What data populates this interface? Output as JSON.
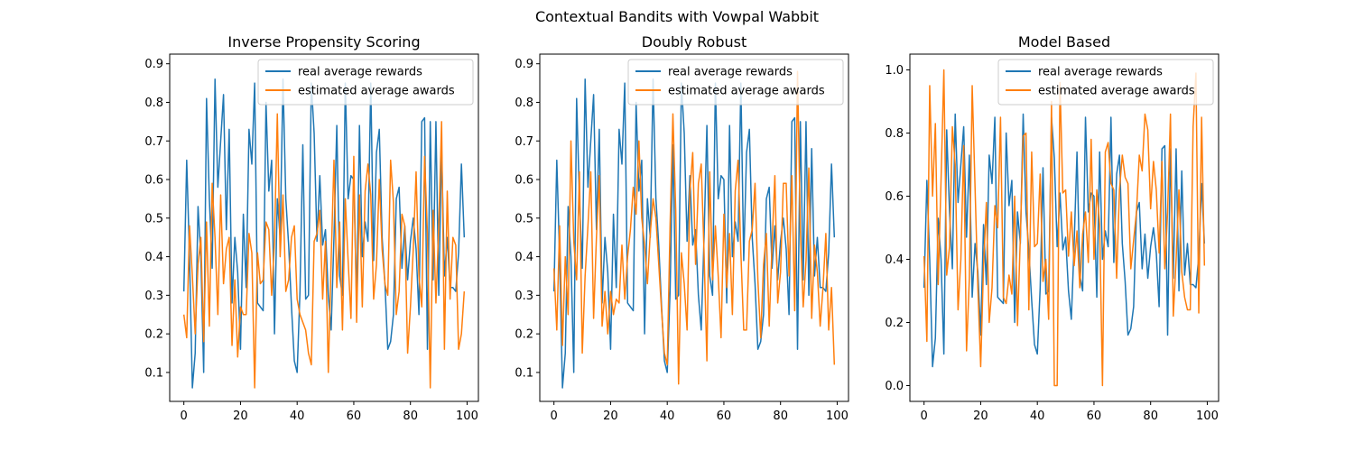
{
  "figure": {
    "suptitle": "Contextual Bandits with Vowpal Wabbit"
  },
  "colors": {
    "real": "#1f77b4",
    "estimated": "#ff7f0e",
    "axis": "#000000",
    "legend_border": "#cccccc",
    "background": "#ffffff"
  },
  "chart_data": [
    {
      "type": "line",
      "title": "Inverse Propensity Scoring",
      "xlabel": "",
      "ylabel": "",
      "xlim": [
        -5,
        104
      ],
      "ylim": [
        0.025,
        0.925
      ],
      "xticks": [
        0,
        20,
        40,
        60,
        80,
        100
      ],
      "yticks": [
        0.1,
        0.2,
        0.3,
        0.4,
        0.5,
        0.6,
        0.7,
        0.8,
        0.9
      ],
      "grid": false,
      "legend": "top-right",
      "series": [
        {
          "name": "real average rewards",
          "values": [
            0.31,
            0.65,
            0.4,
            0.06,
            0.15,
            0.53,
            0.4,
            0.1,
            0.81,
            0.55,
            0.37,
            0.86,
            0.58,
            0.7,
            0.82,
            0.47,
            0.73,
            0.28,
            0.45,
            0.36,
            0.16,
            0.51,
            0.32,
            0.73,
            0.64,
            0.85,
            0.28,
            0.27,
            0.26,
            0.8,
            0.57,
            0.65,
            0.2,
            0.55,
            0.45,
            0.86,
            0.55,
            0.43,
            0.27,
            0.13,
            0.1,
            0.31,
            0.69,
            0.29,
            0.3,
            0.85,
            0.72,
            0.44,
            0.61,
            0.43,
            0.47,
            0.3,
            0.21,
            0.45,
            0.74,
            0.35,
            0.3,
            0.85,
            0.55,
            0.61,
            0.6,
            0.28,
            0.74,
            0.4,
            0.49,
            0.44,
            0.85,
            0.39,
            0.67,
            0.73,
            0.45,
            0.33,
            0.16,
            0.18,
            0.25,
            0.55,
            0.58,
            0.37,
            0.48,
            0.34,
            0.44,
            0.5,
            0.42,
            0.25,
            0.75,
            0.76,
            0.16,
            0.75,
            0.34,
            0.75,
            0.3,
            0.68,
            0.35,
            0.45,
            0.32,
            0.32,
            0.31,
            0.41,
            0.64,
            0.45
          ]
        },
        {
          "name": "estimated average awards",
          "values": [
            0.25,
            0.19,
            0.48,
            0.35,
            0.2,
            0.38,
            0.45,
            0.18,
            0.49,
            0.22,
            0.59,
            0.45,
            0.25,
            0.56,
            0.33,
            0.42,
            0.45,
            0.17,
            0.34,
            0.14,
            0.27,
            0.25,
            0.25,
            0.46,
            0.41,
            0.06,
            0.41,
            0.33,
            0.34,
            0.49,
            0.47,
            0.3,
            0.44,
            0.77,
            0.4,
            0.56,
            0.31,
            0.34,
            0.45,
            0.48,
            0.29,
            0.25,
            0.23,
            0.21,
            0.15,
            0.12,
            0.44,
            0.46,
            0.52,
            0.29,
            0.44,
            0.1,
            0.39,
            0.65,
            0.32,
            0.49,
            0.21,
            0.55,
            0.39,
            0.24,
            0.66,
            0.23,
            0.56,
            0.27,
            0.57,
            0.64,
            0.56,
            0.29,
            0.38,
            0.6,
            0.42,
            0.33,
            0.3,
            0.65,
            0.54,
            0.25,
            0.31,
            0.51,
            0.48,
            0.15,
            0.27,
            0.42,
            0.62,
            0.35,
            0.27,
            0.66,
            0.46,
            0.06,
            0.52,
            0.28,
            0.48,
            0.75,
            0.16,
            0.57,
            0.29,
            0.45,
            0.43,
            0.16,
            0.2,
            0.31
          ]
        }
      ]
    },
    {
      "type": "line",
      "title": "Doubly Robust",
      "xlabel": "",
      "ylabel": "",
      "xlim": [
        -5,
        104
      ],
      "ylim": [
        0.025,
        0.925
      ],
      "xticks": [
        0,
        20,
        40,
        60,
        80,
        100
      ],
      "yticks": [
        0.1,
        0.2,
        0.3,
        0.4,
        0.5,
        0.6,
        0.7,
        0.8,
        0.9
      ],
      "grid": false,
      "legend": "top-right",
      "series": [
        {
          "name": "real average rewards",
          "values": [
            0.31,
            0.65,
            0.4,
            0.06,
            0.15,
            0.53,
            0.4,
            0.1,
            0.81,
            0.55,
            0.37,
            0.86,
            0.58,
            0.7,
            0.82,
            0.47,
            0.73,
            0.28,
            0.45,
            0.36,
            0.16,
            0.51,
            0.32,
            0.73,
            0.64,
            0.85,
            0.28,
            0.27,
            0.26,
            0.8,
            0.57,
            0.65,
            0.2,
            0.55,
            0.45,
            0.86,
            0.55,
            0.43,
            0.27,
            0.13,
            0.1,
            0.31,
            0.69,
            0.29,
            0.3,
            0.85,
            0.72,
            0.44,
            0.61,
            0.43,
            0.47,
            0.3,
            0.21,
            0.45,
            0.74,
            0.35,
            0.3,
            0.85,
            0.55,
            0.61,
            0.6,
            0.28,
            0.74,
            0.4,
            0.49,
            0.44,
            0.85,
            0.39,
            0.67,
            0.73,
            0.45,
            0.33,
            0.16,
            0.18,
            0.25,
            0.55,
            0.58,
            0.37,
            0.48,
            0.34,
            0.44,
            0.5,
            0.42,
            0.25,
            0.75,
            0.76,
            0.16,
            0.75,
            0.34,
            0.75,
            0.3,
            0.68,
            0.35,
            0.45,
            0.32,
            0.32,
            0.31,
            0.41,
            0.64,
            0.45
          ]
        },
        {
          "name": "estimated average awards",
          "values": [
            0.37,
            0.21,
            0.48,
            0.17,
            0.4,
            0.25,
            0.7,
            0.44,
            0.34,
            0.62,
            0.15,
            0.35,
            0.48,
            0.62,
            0.24,
            0.45,
            0.61,
            0.22,
            0.31,
            0.2,
            0.31,
            0.25,
            0.29,
            0.28,
            0.43,
            0.29,
            0.4,
            0.47,
            0.58,
            0.51,
            0.7,
            0.5,
            0.43,
            0.33,
            0.46,
            0.55,
            0.5,
            0.38,
            0.26,
            0.15,
            0.12,
            0.48,
            0.77,
            0.52,
            0.07,
            0.41,
            0.33,
            0.21,
            0.57,
            0.67,
            0.38,
            0.59,
            0.64,
            0.41,
            0.13,
            0.62,
            0.34,
            0.48,
            0.35,
            0.19,
            0.51,
            0.32,
            0.46,
            0.25,
            0.57,
            0.65,
            0.41,
            0.21,
            0.21,
            0.44,
            0.47,
            0.59,
            0.34,
            0.19,
            0.38,
            0.46,
            0.22,
            0.43,
            0.61,
            0.28,
            0.36,
            0.59,
            0.59,
            0.35,
            0.61,
            0.26,
            0.88,
            0.47,
            0.27,
            0.39,
            0.63,
            0.24,
            0.43,
            0.36,
            0.22,
            0.32,
            0.46,
            0.21,
            0.32,
            0.12
          ]
        }
      ]
    },
    {
      "type": "line",
      "title": "Model Based",
      "xlabel": "",
      "ylabel": "",
      "xlim": [
        -5,
        104
      ],
      "ylim": [
        -0.05,
        1.05
      ],
      "xticks": [
        0,
        20,
        40,
        60,
        80,
        100
      ],
      "yticks": [
        0.0,
        0.2,
        0.4,
        0.6,
        0.8,
        1.0
      ],
      "grid": false,
      "legend": "top-right",
      "series": [
        {
          "name": "real average rewards",
          "values": [
            0.31,
            0.65,
            0.4,
            0.06,
            0.15,
            0.53,
            0.4,
            0.1,
            0.81,
            0.55,
            0.37,
            0.86,
            0.58,
            0.7,
            0.82,
            0.47,
            0.73,
            0.28,
            0.45,
            0.36,
            0.16,
            0.51,
            0.32,
            0.73,
            0.64,
            0.85,
            0.28,
            0.27,
            0.26,
            0.8,
            0.57,
            0.65,
            0.2,
            0.55,
            0.45,
            0.86,
            0.55,
            0.43,
            0.27,
            0.13,
            0.1,
            0.31,
            0.69,
            0.29,
            0.3,
            0.85,
            0.72,
            0.44,
            0.61,
            0.43,
            0.47,
            0.3,
            0.21,
            0.45,
            0.74,
            0.35,
            0.3,
            0.85,
            0.55,
            0.61,
            0.6,
            0.28,
            0.74,
            0.4,
            0.49,
            0.44,
            0.85,
            0.39,
            0.67,
            0.73,
            0.45,
            0.33,
            0.16,
            0.18,
            0.25,
            0.55,
            0.58,
            0.37,
            0.48,
            0.34,
            0.44,
            0.5,
            0.42,
            0.25,
            0.75,
            0.76,
            0.16,
            0.75,
            0.34,
            0.75,
            0.3,
            0.68,
            0.35,
            0.45,
            0.32,
            0.32,
            0.31,
            0.41,
            0.64,
            0.45
          ]
        },
        {
          "name": "estimated average awards",
          "values": [
            0.41,
            0.14,
            0.95,
            0.6,
            0.83,
            0.32,
            0.65,
            1.0,
            0.35,
            0.44,
            0.82,
            0.7,
            0.24,
            0.4,
            0.76,
            0.11,
            0.34,
            0.95,
            0.63,
            0.31,
            0.06,
            0.38,
            0.58,
            0.2,
            0.31,
            0.57,
            0.5,
            0.85,
            0.28,
            0.26,
            0.35,
            0.29,
            0.6,
            0.19,
            0.47,
            0.79,
            0.8,
            0.24,
            0.74,
            0.44,
            0.45,
            0.67,
            0.33,
            0.4,
            0.21,
            0.9,
            0.0,
            0.0,
            0.96,
            0.61,
            0.62,
            0.41,
            0.55,
            0.38,
            0.49,
            0.31,
            0.48,
            0.55,
            0.39,
            0.78,
            0.4,
            0.62,
            0.51,
            0.0,
            0.74,
            0.77,
            0.64,
            0.62,
            0.34,
            0.62,
            0.73,
            0.66,
            0.64,
            0.37,
            0.46,
            0.55,
            0.73,
            0.68,
            0.86,
            0.81,
            0.56,
            0.71,
            0.62,
            0.42,
            0.71,
            0.37,
            0.55,
            0.86,
            0.22,
            0.4,
            0.62,
            0.36,
            0.28,
            0.24,
            0.24,
            0.82,
            0.99,
            0.23,
            0.85,
            0.38
          ]
        }
      ]
    }
  ]
}
